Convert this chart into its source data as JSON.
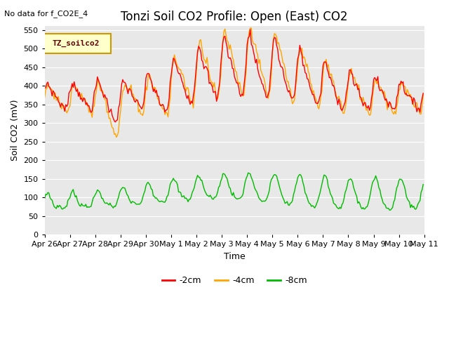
{
  "title": "Tonzi Soil CO2 Profile: Open (East) CO2",
  "subtitle": "No data for f_CO2E_4",
  "ylabel": "Soil CO2 (mV)",
  "xlabel": "Time",
  "legend_label": "TZ_soilco2",
  "series_labels": [
    "-2cm",
    "-4cm",
    "-8cm"
  ],
  "series_colors": [
    "#ff0000",
    "#ffa500",
    "#00bb00"
  ],
  "series_linewidths": [
    1.0,
    1.0,
    1.0
  ],
  "ylim": [
    0,
    560
  ],
  "yticks": [
    0,
    50,
    100,
    150,
    200,
    250,
    300,
    350,
    400,
    450,
    500,
    550
  ],
  "plot_bg_color": "#e8e8e8",
  "grid_color": "#ffffff",
  "title_fontsize": 12,
  "ylabel_fontsize": 9,
  "xlabel_fontsize": 9,
  "tick_fontsize": 8,
  "n_days": 15,
  "pts_per_day": 24
}
